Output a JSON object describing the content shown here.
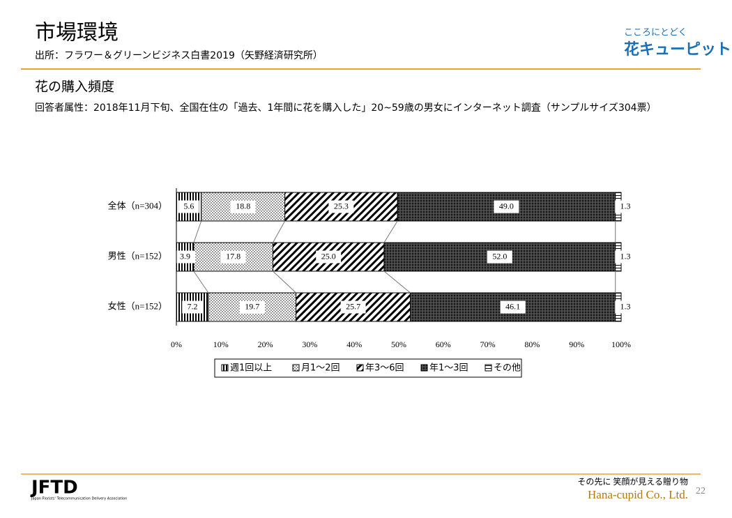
{
  "header": {
    "title": "市場環境",
    "source": "出所：フラワー＆グリーンビジネス白書2019（矢野経済研究所）",
    "logo_tagline": "こころにとどく",
    "logo_name": "花キューピット"
  },
  "section": {
    "title": "花の購入頻度",
    "note": "回答者属性：2018年11月下旬、全国在住の「過去、1年間に花を購入した」20~59歳の男女にインターネット調査（サンプルサイズ304票）"
  },
  "chart_data": {
    "type": "stacked-bar-horizontal",
    "categories": [
      "全体（n=304）",
      "男性（n=152）",
      "女性（n=152）"
    ],
    "series": [
      {
        "name": "週1回以上",
        "color": "#000000",
        "pattern": "vertical",
        "values": [
          5.6,
          3.9,
          7.2
        ],
        "value_labels": [
          "5.6",
          "3.9",
          "7.2"
        ]
      },
      {
        "name": "月1～2回",
        "color": "#000000",
        "pattern": "dots",
        "values": [
          18.8,
          17.8,
          19.7
        ],
        "value_labels": [
          "18.8",
          "17.8",
          "19.7"
        ]
      },
      {
        "name": "年3～6回",
        "color": "#000000",
        "pattern": "diagonal",
        "values": [
          25.3,
          25.0,
          25.7
        ],
        "value_labels": [
          "25.3",
          "25.0",
          "25.7"
        ]
      },
      {
        "name": "年1～3回",
        "color": "#000000",
        "pattern": "crosshatch",
        "values": [
          49.0,
          52.0,
          46.1
        ],
        "value_labels": [
          "49.0",
          "52.0",
          "46.1"
        ]
      },
      {
        "name": "その他",
        "color": "#000000",
        "pattern": "horizontal",
        "values": [
          1.3,
          1.3,
          1.3
        ],
        "value_labels": [
          "1.3",
          "1.3",
          "1.3"
        ]
      }
    ],
    "xlim": [
      0,
      100
    ],
    "xticks": [
      {
        "value": 0,
        "label": "0%"
      },
      {
        "value": 10,
        "label": "10%"
      },
      {
        "value": 20,
        "label": "20%"
      },
      {
        "value": 30,
        "label": "30%"
      },
      {
        "value": 40,
        "label": "40%"
      },
      {
        "value": 50,
        "label": "50%"
      },
      {
        "value": 60,
        "label": "60%"
      },
      {
        "value": 70,
        "label": "70%"
      },
      {
        "value": 80,
        "label": "80%"
      },
      {
        "value": 90,
        "label": "90%"
      },
      {
        "value": 100,
        "label": "100%"
      }
    ],
    "grid": false,
    "legend": "bottom"
  },
  "footer": {
    "org": "Japan Florists' Telecommunication Delivery Association",
    "tagline": "その先に 笑顔が見える贈り物",
    "company": "Hana-cupid Co., Ltd.",
    "page": "22"
  }
}
